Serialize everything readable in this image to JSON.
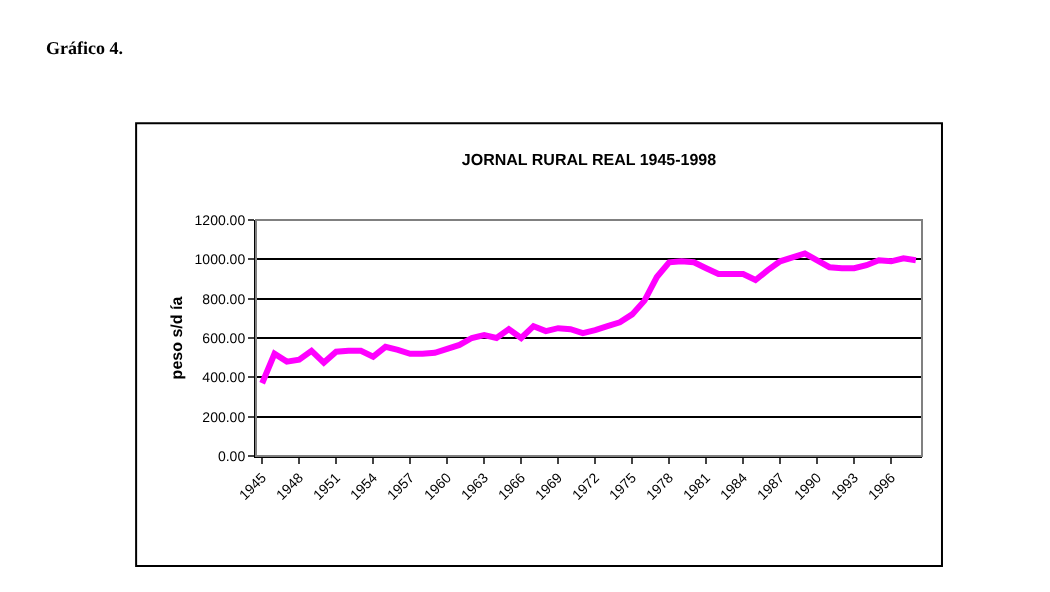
{
  "chart_data": {
    "type": "line",
    "title": "JORNAL RURAL REAL 1945-1998",
    "ylabel": "peso s/d ía",
    "annotations": [
      "Gráfico 4."
    ],
    "categories": [
      "1945",
      null,
      null,
      "1948",
      null,
      null,
      "1951",
      null,
      null,
      "1954",
      null,
      null,
      "1957",
      null,
      null,
      "1960",
      null,
      null,
      "1963",
      null,
      null,
      "1966",
      null,
      null,
      "1969",
      null,
      null,
      "1972",
      null,
      null,
      "1975",
      null,
      null,
      "1978",
      null,
      null,
      "1981",
      null,
      null,
      "1984",
      null,
      null,
      "1987",
      null,
      null,
      "1990",
      null,
      null,
      "1993",
      null,
      null,
      "1996",
      null,
      null
    ],
    "series": [
      {
        "color": "#ff00ff",
        "values": [
          370,
          520,
          480,
          490,
          535,
          475,
          530,
          535,
          535,
          505,
          555,
          540,
          520,
          520,
          525,
          545,
          565,
          600,
          615,
          600,
          645,
          600,
          660,
          635,
          650,
          645,
          625,
          640,
          660,
          680,
          720,
          790,
          910,
          985,
          990,
          985,
          955,
          925,
          925,
          925,
          895,
          945,
          990,
          1010,
          1030,
          995,
          960,
          955,
          955,
          970,
          995,
          990,
          1005,
          995
        ]
      }
    ],
    "ylim": [
      0,
      1200
    ],
    "yticks": [
      {
        "value": 0,
        "label": "0.00"
      },
      {
        "value": 200,
        "label": "200.00"
      },
      {
        "value": 400,
        "label": "400.00"
      },
      {
        "value": 600,
        "label": "600.00"
      },
      {
        "value": 800,
        "label": "800.00"
      },
      {
        "value": 1000,
        "label": "1000.00"
      },
      {
        "value": 1200,
        "label": "1200.00"
      }
    ],
    "grid": "y",
    "marker": "none",
    "line_style": "solid"
  }
}
